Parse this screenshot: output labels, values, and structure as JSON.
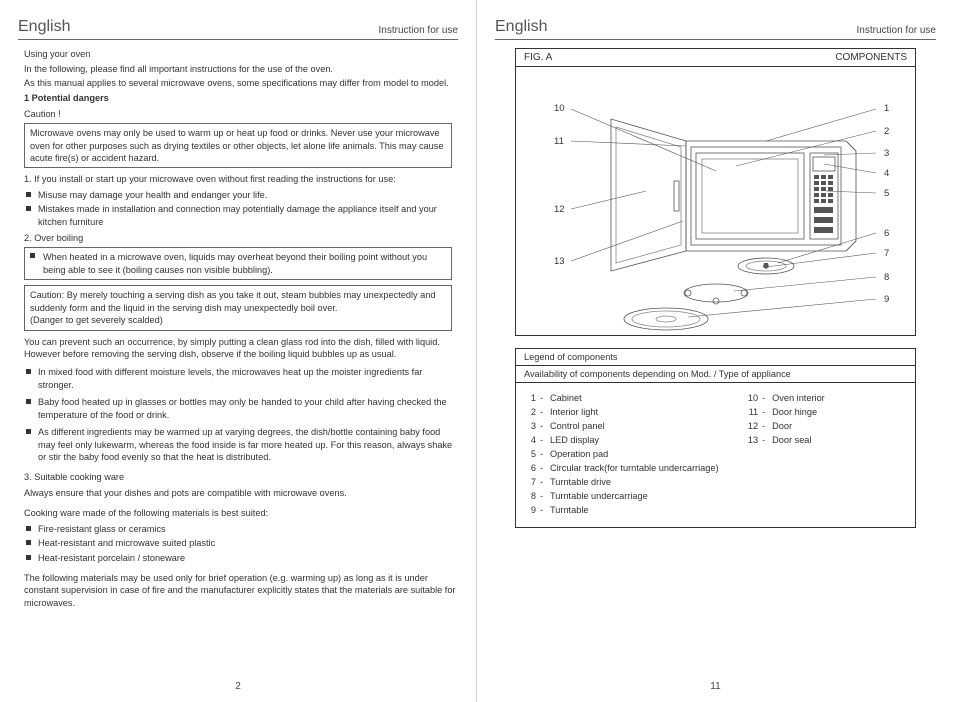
{
  "header": {
    "lang": "English",
    "sub": "Instruction for use"
  },
  "pagenum_left": "2",
  "pagenum_right": "11",
  "left": {
    "intro_h": "Using  your oven",
    "intro_1": "In the following, please find all important instructions for the  use of  the oven.",
    "intro_2": "As this manual  applies  to several  microwave ovens,  some specifications  may  differ from  model to model.",
    "s1_h": "1 Potential dangers",
    "caution": "Caution !",
    "box1_1": "Microwave ovens may only be used to  warm up or heat up food or drinks. Never use your microwave oven for other purposes such as drying textiles or other objects, let alone life animals. This may cause acute  fire(s) or accident hazard.",
    "p_num1": "1.  If you install or start up your  microwave oven without first reading the instructions for use:",
    "bul1_a": "Misuse may damage your health and endanger your life.",
    "bul1_b": "Mistakes made in installation and connection may potentially damage the appliance itself and your kitchen furniture",
    "p_num2": "2.  Over boiling",
    "box2_1": "When heated in a microwave oven, liquids  may overheat beyond their boiling point without you being able to see it (boiling causes non visible bubbling).",
    "box3_1": "Caution:  By merely touching a serving  dish as you take it out, steam bubbles  may unexpectedly and suddenly form and the liquid in the serving dish  may unexpectedly boil over.",
    "box3_2": "(Danger to get severely scalded)",
    "p_prevent": "You can prevent such an occurrence, by simply putting a clean glass rod into the dish, filled with liquid. However before removing the serving dish,  observe if the boiling  liquid bubbles up as usual.",
    "bul2_a": "In mixed food with different moisture levels, the microwaves heat up  the moister ingredients far stronger.",
    "bul2_b": "Baby food heated up in glasses or bottles may only be handed to your child after having checked the temperature of the food or drink.",
    "bul2_c": "As different ingredients may be warmed up at varying degrees, the dish/bottle containing baby food may feel only  lukewarm, whereas the food  inside is far more heated up. For this reason, always shake or stir the baby food evenly so that  the heat is distributed.",
    "s3_h": "3. Suitable cooking ware",
    "s3_p1": "Always ensure that your dishes and pots are compatible  with microwave ovens.",
    "s3_p2": "Cooking ware made of the following materials is best suited:",
    "bul3_a": "Fire-resistant glass  or ceramics",
    "bul3_b": "Heat-resistant and  microwave suited plastic",
    "bul3_c": "Heat-resistant porcelain /  stoneware",
    "s3_p3": "The following materials may be used only for brief operation (e.g. warming up) as long as it is under constant supervision in case of fire  and the manufacturer explicitly states that the materials are suitable for microwaves."
  },
  "right": {
    "fig_label": "FIG.  A",
    "fig_components": "COMPONENTS",
    "callouts_right": [
      "1",
      "2",
      "3",
      "4",
      "5",
      "6",
      "7",
      "8",
      "9"
    ],
    "callouts_left": [
      "10",
      "11",
      "12",
      "13"
    ],
    "legend_h1": "Legend of components",
    "legend_h2": "Availability of components depending on Mod. / Type of appliance",
    "legend_col1": [
      {
        "n": "1",
        "t": "Cabinet"
      },
      {
        "n": "2",
        "t": "Interior light"
      },
      {
        "n": "3",
        "t": "Control panel"
      },
      {
        "n": "4",
        "t": "LED display"
      },
      {
        "n": "5",
        "t": "Operation pad"
      },
      {
        "n": "6",
        "t": "Circular track(for turntable undercarriage)"
      },
      {
        "n": "7",
        "t": "Turntable drive"
      },
      {
        "n": "8",
        "t": "Turntable undercarriage"
      },
      {
        "n": "9",
        "t": "Turntable"
      }
    ],
    "legend_col2": [
      {
        "n": "10",
        "t": "Oven interior"
      },
      {
        "n": "11",
        "t": "Door hinge"
      },
      {
        "n": "12",
        "t": "Door"
      },
      {
        "n": "13",
        "t": "Door seal"
      }
    ]
  }
}
